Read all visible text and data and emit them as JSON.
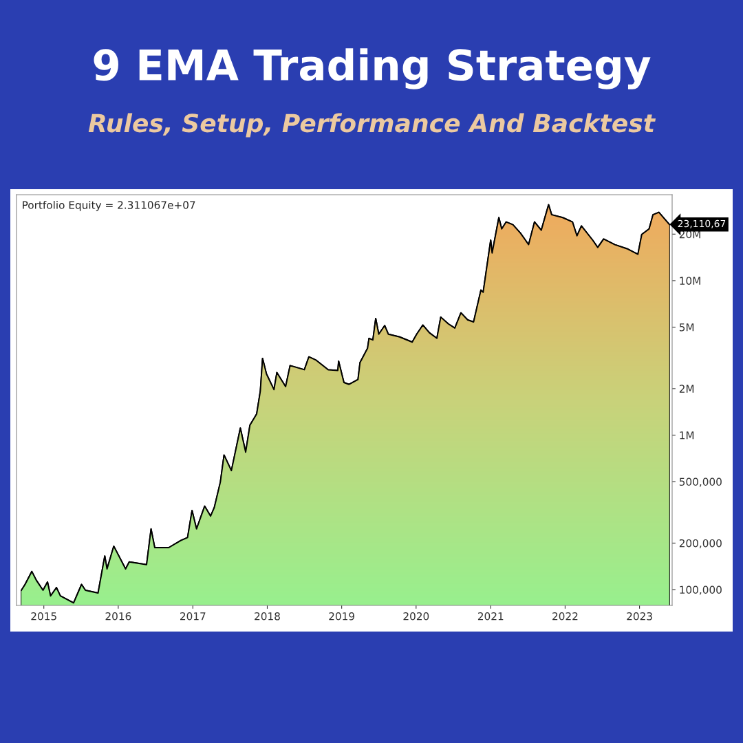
{
  "chart_data": {
    "type": "area",
    "title": "9 EMA Trading Strategy",
    "subtitle": "Rules, Setup, Performance And Backtest",
    "x": [
      "2014-09-13",
      "2014-10-01",
      "2014-11-03",
      "2014-11-25",
      "2014-12-28",
      "2015-01-19",
      "2015-02-03",
      "2015-03-04",
      "2015-03-23",
      "2015-05-27",
      "2015-07-05",
      "2015-07-24",
      "2015-09-24",
      "2015-10-27",
      "2015-11-07",
      "2015-12-10",
      "2016-02-06",
      "2016-02-24",
      "2016-05-19",
      "2016-06-10",
      "2016-06-28",
      "2016-09-05",
      "2016-11-03",
      "2016-12-06",
      "2016-12-28",
      "2017-01-19",
      "2017-02-28",
      "2017-03-29",
      "2017-04-16",
      "2017-05-16",
      "2017-06-03",
      "2017-07-09",
      "2017-08-22",
      "2017-09-17",
      "2017-10-08",
      "2017-11-10",
      "2017-11-28",
      "2017-12-09",
      "2017-12-28",
      "2018-02-03",
      "2018-02-17",
      "2018-04-01",
      "2018-04-23",
      "2018-07-02",
      "2018-07-24",
      "2018-08-26",
      "2018-10-27",
      "2018-12-13",
      "2018-12-17",
      "2019-01-12",
      "2019-02-06",
      "2019-03-22",
      "2019-04-01",
      "2019-05-08",
      "2019-05-15",
      "2019-06-03",
      "2019-06-17",
      "2019-07-02",
      "2019-07-31",
      "2019-08-18",
      "2019-10-12",
      "2019-12-13",
      "2020-01-04",
      "2020-02-03",
      "2020-03-06",
      "2020-04-12",
      "2020-05-01",
      "2020-06-07",
      "2020-07-09",
      "2020-08-08",
      "2020-09-10",
      "2020-10-09",
      "2020-11-14",
      "2020-11-25",
      "2021-01-01",
      "2021-01-08",
      "2021-02-10",
      "2021-02-24",
      "2021-03-18",
      "2021-04-20",
      "2021-05-27",
      "2021-07-06",
      "2021-08-04",
      "2021-09-06",
      "2021-10-12",
      "2021-10-27",
      "2021-12-20",
      "2022-02-06",
      "2022-02-28",
      "2022-03-22",
      "2022-05-16",
      "2022-06-10",
      "2022-07-09",
      "2022-09-02",
      "2022-10-31",
      "2022-12-24",
      "2023-01-12",
      "2023-02-17",
      "2023-03-08",
      "2023-04-06",
      "2023-05-27"
    ],
    "series": [
      {
        "color": "#000000",
        "values": [
          99000,
          108000,
          131000,
          115000,
          99000,
          112000,
          91000,
          103000,
          91000,
          82000,
          108000,
          99000,
          95000,
          165000,
          136000,
          191000,
          136000,
          151000,
          145000,
          247000,
          187000,
          187000,
          208000,
          217000,
          325000,
          247000,
          347000,
          299000,
          339000,
          497000,
          743000,
          589000,
          1110000,
          775000,
          1160000,
          1370000,
          1930000,
          3140000,
          2490000,
          1970000,
          2540000,
          2060000,
          2820000,
          2650000,
          3210000,
          3070000,
          2650000,
          2620000,
          3010000,
          2190000,
          2130000,
          2290000,
          2950000,
          3650000,
          4230000,
          4130000,
          5690000,
          4500000,
          5120000,
          4500000,
          4320000,
          4000000,
          4500000,
          5160000,
          4600000,
          4230000,
          5810000,
          5250000,
          4930000,
          6190000,
          5570000,
          5400000,
          8690000,
          8400000,
          18300000,
          15100000,
          25600000,
          21600000,
          24000000,
          23000000,
          20300000,
          17100000,
          24000000,
          21200000,
          31000000,
          26700000,
          25600000,
          24000000,
          19500000,
          22600000,
          18300000,
          16400000,
          18600000,
          17100000,
          16100000,
          14800000,
          19900000,
          21600000,
          26700000,
          27700000,
          23110670
        ]
      }
    ],
    "log": true,
    "xlim": [
      "2014-08-20",
      "2023-06-10"
    ],
    "xticks": [
      {
        "value": "2015-01-01",
        "label": "2015"
      },
      {
        "value": "2016-01-01",
        "label": "2016"
      },
      {
        "value": "2017-01-01",
        "label": "2017"
      },
      {
        "value": "2018-01-01",
        "label": "2018"
      },
      {
        "value": "2019-01-01",
        "label": "2019"
      },
      {
        "value": "2020-01-01",
        "label": "2020"
      },
      {
        "value": "2021-01-01",
        "label": "2021"
      },
      {
        "value": "2022-01-01",
        "label": "2022"
      },
      {
        "value": "2023-01-01",
        "label": "2023"
      }
    ],
    "ylim": [
      79000,
      36000000
    ],
    "yticks": [
      {
        "value": 100000,
        "label": "100,000"
      },
      {
        "value": 200000,
        "label": "200,000"
      },
      {
        "value": 500000,
        "label": "500,000"
      },
      {
        "value": 1000000,
        "label": "1M"
      },
      {
        "value": 2000000,
        "label": "2M"
      },
      {
        "value": 5000000,
        "label": "5M"
      },
      {
        "value": 10000000,
        "label": "10M"
      },
      {
        "value": 20000000,
        "label": "20M"
      }
    ],
    "annotations": [
      "Portfolio Equity = 2.311067e+07",
      {
        "text": "23,110,67",
        "x": "2023-05-27",
        "y": 23110670
      }
    ],
    "grid": false,
    "legend": false
  }
}
